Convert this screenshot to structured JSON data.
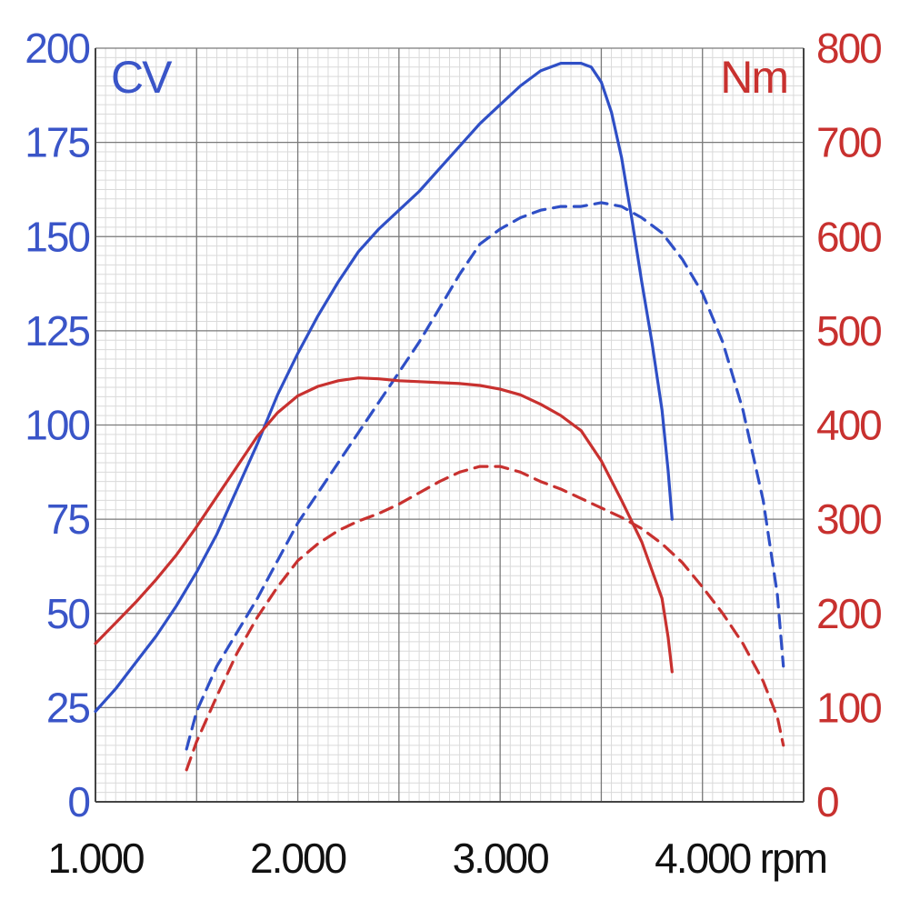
{
  "chart_data": {
    "type": "line",
    "title": "",
    "x_unit": "rpm",
    "left_axis": {
      "unit": "CV",
      "range": [
        0,
        200
      ],
      "ticks": [
        "200",
        "175",
        "150",
        "125",
        "100",
        "75",
        "50",
        "25",
        "0"
      ]
    },
    "right_axis": {
      "unit": "Nm",
      "range": [
        0,
        800
      ],
      "ticks": [
        "800",
        "700",
        "600",
        "500",
        "400",
        "300",
        "200",
        "100",
        "0"
      ]
    },
    "x_axis": {
      "range": [
        1000,
        4500
      ],
      "ticks": [
        {
          "value": 1000,
          "label": "1.000"
        },
        {
          "value": 2000,
          "label": "2.000"
        },
        {
          "value": 3000,
          "label": "3.000"
        },
        {
          "value": 4000,
          "label": "4.000"
        }
      ]
    },
    "grid": true,
    "colors": {
      "power": "#2f4fc6",
      "torque": "#c8312f",
      "grid_major": "#7a7a7a",
      "grid_minor": "#dadada"
    },
    "series": [
      {
        "axis": "left",
        "color": "#2f4fc6",
        "style": "solid",
        "points": [
          [
            1000,
            24
          ],
          [
            1100,
            30
          ],
          [
            1200,
            37
          ],
          [
            1300,
            44
          ],
          [
            1400,
            52
          ],
          [
            1500,
            61
          ],
          [
            1600,
            71
          ],
          [
            1700,
            83
          ],
          [
            1800,
            95
          ],
          [
            1900,
            108
          ],
          [
            2000,
            119
          ],
          [
            2100,
            129
          ],
          [
            2200,
            138
          ],
          [
            2300,
            146
          ],
          [
            2400,
            152
          ],
          [
            2500,
            157
          ],
          [
            2600,
            162
          ],
          [
            2700,
            168
          ],
          [
            2800,
            174
          ],
          [
            2900,
            180
          ],
          [
            3000,
            185
          ],
          [
            3100,
            190
          ],
          [
            3200,
            194
          ],
          [
            3300,
            196
          ],
          [
            3400,
            196
          ],
          [
            3450,
            195
          ],
          [
            3500,
            191
          ],
          [
            3550,
            183
          ],
          [
            3600,
            171
          ],
          [
            3650,
            155
          ],
          [
            3700,
            138
          ],
          [
            3750,
            122
          ],
          [
            3800,
            104
          ],
          [
            3830,
            88
          ],
          [
            3850,
            75
          ]
        ]
      },
      {
        "axis": "left",
        "color": "#2f4fc6",
        "style": "dashed",
        "points": [
          [
            1450,
            14
          ],
          [
            1500,
            24
          ],
          [
            1600,
            36
          ],
          [
            1700,
            45
          ],
          [
            1800,
            54
          ],
          [
            1900,
            64
          ],
          [
            2000,
            74
          ],
          [
            2100,
            82
          ],
          [
            2200,
            90
          ],
          [
            2300,
            98
          ],
          [
            2400,
            106
          ],
          [
            2500,
            114
          ],
          [
            2600,
            122
          ],
          [
            2700,
            131
          ],
          [
            2800,
            140
          ],
          [
            2900,
            148
          ],
          [
            3000,
            152
          ],
          [
            3100,
            155
          ],
          [
            3200,
            157
          ],
          [
            3300,
            158
          ],
          [
            3400,
            158
          ],
          [
            3500,
            159
          ],
          [
            3600,
            158
          ],
          [
            3700,
            155
          ],
          [
            3800,
            151
          ],
          [
            3900,
            144
          ],
          [
            4000,
            135
          ],
          [
            4100,
            122
          ],
          [
            4200,
            104
          ],
          [
            4300,
            80
          ],
          [
            4370,
            55
          ],
          [
            4400,
            36
          ]
        ]
      },
      {
        "axis": "right",
        "color": "#c8312f",
        "style": "solid",
        "points": [
          [
            1000,
            168
          ],
          [
            1100,
            190
          ],
          [
            1200,
            212
          ],
          [
            1300,
            236
          ],
          [
            1400,
            262
          ],
          [
            1500,
            292
          ],
          [
            1600,
            324
          ],
          [
            1700,
            356
          ],
          [
            1800,
            388
          ],
          [
            1900,
            413
          ],
          [
            2000,
            431
          ],
          [
            2100,
            441
          ],
          [
            2200,
            447
          ],
          [
            2300,
            450
          ],
          [
            2400,
            449
          ],
          [
            2500,
            447
          ],
          [
            2600,
            446
          ],
          [
            2700,
            445
          ],
          [
            2800,
            444
          ],
          [
            2900,
            442
          ],
          [
            3000,
            438
          ],
          [
            3100,
            432
          ],
          [
            3200,
            422
          ],
          [
            3300,
            410
          ],
          [
            3400,
            394
          ],
          [
            3500,
            362
          ],
          [
            3600,
            320
          ],
          [
            3700,
            276
          ],
          [
            3800,
            216
          ],
          [
            3830,
            175
          ],
          [
            3850,
            138
          ]
        ]
      },
      {
        "axis": "right",
        "color": "#c8312f",
        "style": "dashed",
        "points": [
          [
            1450,
            34
          ],
          [
            1500,
            64
          ],
          [
            1600,
            112
          ],
          [
            1700,
            158
          ],
          [
            1800,
            196
          ],
          [
            1900,
            228
          ],
          [
            2000,
            256
          ],
          [
            2100,
            274
          ],
          [
            2200,
            288
          ],
          [
            2300,
            298
          ],
          [
            2400,
            306
          ],
          [
            2500,
            316
          ],
          [
            2600,
            328
          ],
          [
            2700,
            340
          ],
          [
            2800,
            350
          ],
          [
            2900,
            356
          ],
          [
            3000,
            356
          ],
          [
            3100,
            350
          ],
          [
            3200,
            340
          ],
          [
            3300,
            332
          ],
          [
            3400,
            322
          ],
          [
            3500,
            312
          ],
          [
            3600,
            302
          ],
          [
            3700,
            290
          ],
          [
            3800,
            274
          ],
          [
            3900,
            254
          ],
          [
            4000,
            228
          ],
          [
            4100,
            200
          ],
          [
            4200,
            168
          ],
          [
            4300,
            128
          ],
          [
            4370,
            90
          ],
          [
            4400,
            60
          ]
        ]
      }
    ]
  }
}
